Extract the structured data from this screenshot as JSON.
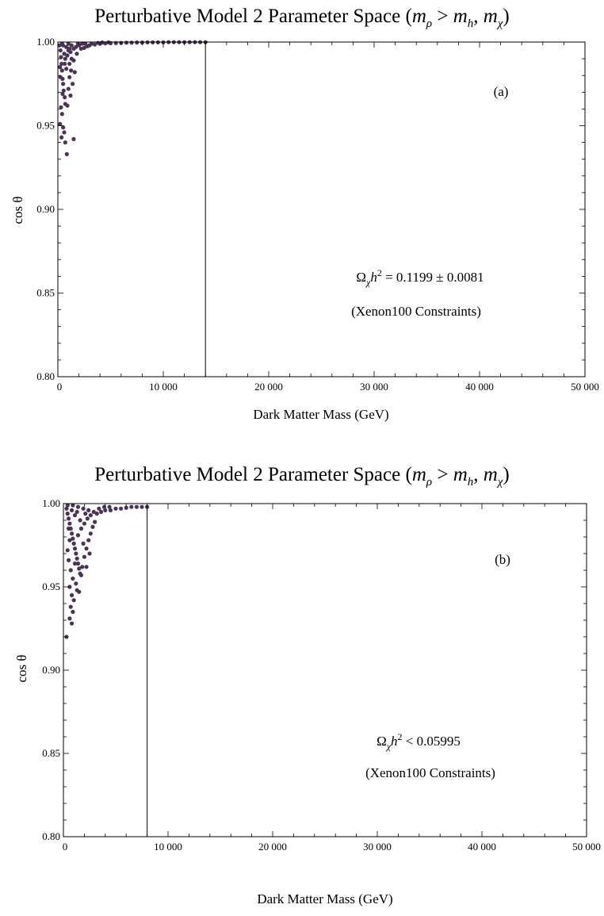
{
  "chart_data": [
    {
      "panel_label": "(a)",
      "type": "scatter",
      "title": {
        "text": "Perturbative Model 2 Parameter Space (",
        "m1": "m",
        "s1": "ρ",
        "gt": " > ",
        "m2": "m",
        "s2": "h",
        "comma": ", ",
        "m3": "m",
        "s3": "χ",
        "close": ")"
      },
      "xlabel": "Dark Matter Mass (GeV)",
      "ylabel": "cos θ",
      "xlim": [
        0,
        50000
      ],
      "ylim": [
        0.8,
        1.0
      ],
      "x_ticks": [
        "0",
        "10 000",
        "20 000",
        "30 000",
        "40 000",
        "50 000"
      ],
      "x_tick_values": [
        0,
        10000,
        20000,
        30000,
        40000,
        50000
      ],
      "y_ticks": [
        "0.80",
        "0.85",
        "0.90",
        "0.95",
        "1.00"
      ],
      "y_tick_values": [
        0.8,
        0.85,
        0.9,
        0.95,
        1.0
      ],
      "annotation_line1": {
        "base": "Ω",
        "sub": "χ",
        "h": "h",
        "sup": "2",
        "rest": " = 0.1199 ± 0.0081"
      },
      "annotation_line2": "(Xenon100 Constraints)",
      "vertical_line_x": 14000,
      "point_color": "#4b3357",
      "points": [
        [
          150,
          0.998
        ],
        [
          250,
          0.995
        ],
        [
          300,
          0.991
        ],
        [
          350,
          0.987
        ],
        [
          400,
          0.983
        ],
        [
          450,
          0.978
        ],
        [
          500,
          0.975
        ],
        [
          550,
          0.971
        ],
        [
          650,
          0.967
        ],
        [
          700,
          0.963
        ],
        [
          300,
          0.961
        ],
        [
          400,
          0.957
        ],
        [
          200,
          0.951
        ],
        [
          500,
          0.949
        ],
        [
          600,
          0.946
        ],
        [
          350,
          0.943
        ],
        [
          700,
          0.94
        ],
        [
          850,
          0.933
        ],
        [
          1500,
          0.942
        ],
        [
          900,
          0.962
        ],
        [
          1000,
          0.972
        ],
        [
          1200,
          0.968
        ],
        [
          1400,
          0.975
        ],
        [
          1600,
          0.982
        ],
        [
          1100,
          0.987
        ],
        [
          800,
          0.984
        ],
        [
          1300,
          0.99
        ],
        [
          1800,
          0.993
        ],
        [
          2200,
          0.996
        ],
        [
          2500,
          0.9965
        ],
        [
          2800,
          0.9975
        ],
        [
          3000,
          0.998
        ],
        [
          3500,
          0.9985
        ],
        [
          4000,
          0.999
        ],
        [
          4500,
          0.9992
        ],
        [
          5000,
          0.9993
        ],
        [
          5500,
          0.9994
        ],
        [
          6000,
          0.9995
        ],
        [
          6500,
          0.9996
        ],
        [
          7000,
          0.9996
        ],
        [
          7500,
          0.9997
        ],
        [
          8000,
          0.9997
        ],
        [
          8500,
          0.9998
        ],
        [
          9000,
          0.9998
        ],
        [
          9500,
          0.9998
        ],
        [
          10000,
          0.9998
        ],
        [
          10500,
          0.9999
        ],
        [
          11000,
          0.9999
        ],
        [
          11500,
          0.9999
        ],
        [
          12000,
          0.9999
        ],
        [
          12500,
          0.9999
        ],
        [
          13000,
          0.9999
        ],
        [
          13500,
          0.9999
        ],
        [
          14000,
          0.9999
        ],
        [
          500,
          0.998
        ],
        [
          800,
          0.997
        ],
        [
          1000,
          0.995
        ],
        [
          1200,
          0.994
        ],
        [
          1500,
          0.996
        ],
        [
          1700,
          0.997
        ],
        [
          2000,
          0.998
        ],
        [
          600,
          0.993
        ],
        [
          700,
          0.99
        ],
        [
          900,
          0.992
        ],
        [
          1100,
          0.996
        ],
        [
          1300,
          0.998
        ],
        [
          1900,
          0.999
        ],
        [
          2300,
          0.999
        ],
        [
          2600,
          0.999
        ],
        [
          400,
          0.999
        ],
        [
          1000,
          0.999
        ],
        [
          3200,
          0.999
        ],
        [
          3800,
          0.9995
        ],
        [
          4200,
          0.9997
        ],
        [
          4800,
          0.9998
        ],
        [
          200,
          0.985
        ],
        [
          250,
          0.979
        ],
        [
          450,
          0.969
        ],
        [
          1100,
          0.979
        ],
        [
          1250,
          0.983
        ],
        [
          650,
          0.987
        ],
        [
          1500,
          0.989
        ]
      ]
    },
    {
      "panel_label": "(b)",
      "type": "scatter",
      "title": {
        "text": "Perturbative Model 2 Parameter Space (",
        "m1": "m",
        "s1": "ρ",
        "gt": " > ",
        "m2": "m",
        "s2": "h",
        "comma": ", ",
        "m3": "m",
        "s3": "χ",
        "close": ")"
      },
      "xlabel": "Dark Matter Mass (GeV)",
      "ylabel": "cos θ",
      "xlim": [
        0,
        50000
      ],
      "ylim": [
        0.8,
        1.0
      ],
      "x_ticks": [
        "0",
        "10 000",
        "20 000",
        "30 000",
        "40 000",
        "50 000"
      ],
      "x_tick_values": [
        0,
        10000,
        20000,
        30000,
        40000,
        50000
      ],
      "y_ticks": [
        "0.80",
        "0.85",
        "0.90",
        "0.95",
        "1.00"
      ],
      "y_tick_values": [
        0.8,
        0.85,
        0.9,
        0.95,
        1.0
      ],
      "annotation_line1": {
        "base": "Ω",
        "sub": "χ",
        "h": "h",
        "sup": "2",
        "rest": " < 0.05995"
      },
      "annotation_line2": "(Xenon100 Constraints)",
      "vertical_line_x": 8000,
      "point_color": "#4b3357",
      "points": [
        [
          300,
          0.997
        ],
        [
          400,
          0.994
        ],
        [
          500,
          0.991
        ],
        [
          600,
          0.988
        ],
        [
          700,
          0.985
        ],
        [
          800,
          0.982
        ],
        [
          900,
          0.979
        ],
        [
          1000,
          0.976
        ],
        [
          1100,
          0.973
        ],
        [
          1200,
          0.97
        ],
        [
          1300,
          0.967
        ],
        [
          1400,
          0.964
        ],
        [
          1500,
          0.961
        ],
        [
          1600,
          0.958
        ],
        [
          1700,
          0.957
        ],
        [
          1800,
          0.962
        ],
        [
          2000,
          0.968
        ],
        [
          2200,
          0.973
        ],
        [
          2400,
          0.978
        ],
        [
          2600,
          0.982
        ],
        [
          2800,
          0.986
        ],
        [
          3000,
          0.989
        ],
        [
          500,
          0.966
        ],
        [
          700,
          0.96
        ],
        [
          900,
          0.955
        ],
        [
          600,
          0.95
        ],
        [
          800,
          0.945
        ],
        [
          1000,
          0.942
        ],
        [
          700,
          0.938
        ],
        [
          900,
          0.935
        ],
        [
          600,
          0.931
        ],
        [
          800,
          0.928
        ],
        [
          300,
          0.92
        ],
        [
          1200,
          0.952
        ],
        [
          1500,
          0.947
        ],
        [
          400,
          0.972
        ],
        [
          600,
          0.978
        ],
        [
          1400,
          0.981
        ],
        [
          1700,
          0.985
        ],
        [
          2000,
          0.988
        ],
        [
          2300,
          0.991
        ],
        [
          2600,
          0.993
        ],
        [
          3200,
          0.994
        ],
        [
          3600,
          0.995
        ],
        [
          4000,
          0.996
        ],
        [
          4500,
          0.996
        ],
        [
          5000,
          0.997
        ],
        [
          5500,
          0.997
        ],
        [
          6000,
          0.9975
        ],
        [
          6500,
          0.998
        ],
        [
          7000,
          0.998
        ],
        [
          7500,
          0.998
        ],
        [
          8000,
          0.998
        ],
        [
          400,
          0.999
        ],
        [
          900,
          0.999
        ],
        [
          1400,
          0.998
        ],
        [
          1900,
          0.997
        ],
        [
          2400,
          0.996
        ],
        [
          2900,
          0.995
        ],
        [
          3400,
          0.997
        ],
        [
          3900,
          0.998
        ],
        [
          4400,
          0.998
        ],
        [
          1100,
          0.993
        ],
        [
          1600,
          0.99
        ],
        [
          2100,
          0.994
        ],
        [
          800,
          0.996
        ],
        [
          1300,
          0.995
        ],
        [
          500,
          0.985
        ],
        [
          1900,
          0.976
        ],
        [
          2200,
          0.962
        ],
        [
          1100,
          0.964
        ],
        [
          2500,
          0.97
        ],
        [
          1300,
          0.948
        ]
      ]
    }
  ]
}
